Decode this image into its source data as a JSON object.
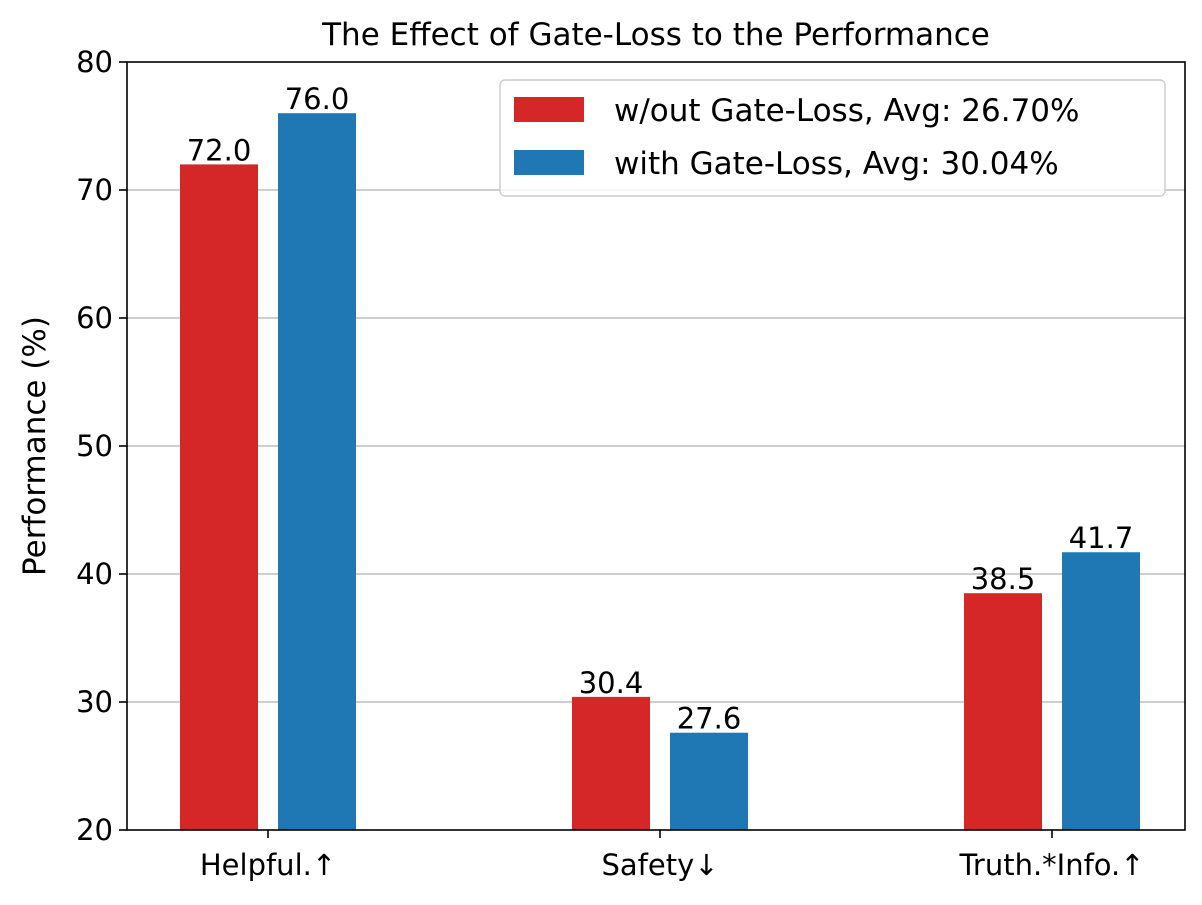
{
  "chart_data": {
    "type": "bar",
    "title": "The Effect of Gate-Loss to the Performance",
    "xlabel": "",
    "ylabel": "Performance (%)",
    "ylim": [
      20,
      80
    ],
    "yticks": [
      20,
      30,
      40,
      50,
      60,
      70,
      80
    ],
    "grid": "y",
    "legend_position": "top-right",
    "categories": [
      "Helpful.↑",
      "Safety↓",
      "Truth.*Info.↑"
    ],
    "series": [
      {
        "name": "w/out Gate-Loss, Avg: 26.70%",
        "color": "#d62728",
        "values": [
          72.0,
          30.4,
          38.5
        ],
        "labels": [
          "72.0",
          "30.4",
          "38.5"
        ]
      },
      {
        "name": "with Gate-Loss, Avg: 30.04%",
        "color": "#1f77b4",
        "values": [
          76.0,
          27.6,
          41.7
        ],
        "labels": [
          "76.0",
          "27.6",
          "41.7"
        ]
      }
    ]
  }
}
